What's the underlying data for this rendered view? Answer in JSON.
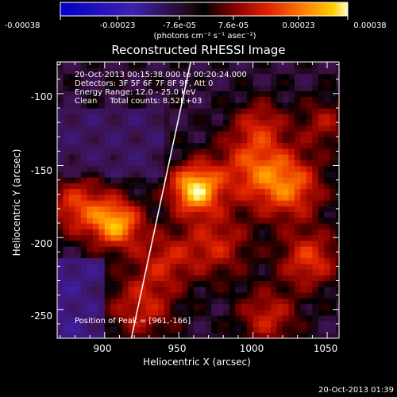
{
  "colorbar": {
    "ticks": [
      "-0.00038",
      "-0.00023",
      "-7.6e-05",
      "7.6e-05",
      "0.00023",
      "0.00038"
    ],
    "unit_label": "(photons cm⁻² s⁻¹ asec⁻²)"
  },
  "chart_data": {
    "type": "heatmap",
    "title": "Reconstructed RHESSI Image",
    "xlabel": "Heliocentric X (arcsec)",
    "ylabel": "Heliocentric Y (arcsec)",
    "xlim": [
      868,
      1058
    ],
    "ylim": [
      -270,
      -78
    ],
    "x_ticks": [
      "900",
      "950",
      "1000",
      "1050"
    ],
    "y_ticks": [
      "-100",
      "-150",
      "-200",
      "-250"
    ],
    "annotations": [
      "20-Oct-2013 00:15:38.000 to 00:20:24.000",
      "Detectors: 3F 5F 6F 7F 8F 9F, Att 0",
      "Energy Range: 12.0 - 25.0 keV",
      "Clean     Total counts: 8.52E+03"
    ],
    "peak_label": "Position of Peak = [961,-166]",
    "peak": [
      961,
      -166
    ],
    "sources": [
      {
        "x": 961,
        "y": -166,
        "amp": 1.0,
        "sigma": 12
      },
      {
        "x": 908,
        "y": -190,
        "amp": 0.85,
        "sigma": 12
      },
      {
        "x": 882,
        "y": -178,
        "amp": 0.55,
        "sigma": 14
      },
      {
        "x": 1000,
        "y": -150,
        "amp": 0.55,
        "sigma": 18
      },
      {
        "x": 1025,
        "y": -165,
        "amp": 0.6,
        "sigma": 16
      },
      {
        "x": 1038,
        "y": -215,
        "amp": 0.55,
        "sigma": 14
      },
      {
        "x": 975,
        "y": -205,
        "amp": 0.45,
        "sigma": 16
      },
      {
        "x": 925,
        "y": -248,
        "amp": 0.45,
        "sigma": 16
      },
      {
        "x": 1010,
        "y": -255,
        "amp": 0.45,
        "sigma": 14
      },
      {
        "x": 940,
        "y": -215,
        "amp": 0.4,
        "sigma": 14
      },
      {
        "x": 1005,
        "y": -120,
        "amp": 0.35,
        "sigma": 12
      },
      {
        "x": 1048,
        "y": -120,
        "amp": 0.35,
        "sigma": 12
      }
    ],
    "colormap": [
      "#0000c8",
      "#4020b0",
      "#3a1040",
      "#000000",
      "#800000",
      "#e02000",
      "#ff8000",
      "#ffd000",
      "#ffffc8"
    ],
    "limb_curve_x_at_ymax": 958,
    "limb_curve_x_at_ymin": 918
  },
  "timestamp": "20-Oct-2013 01:39"
}
